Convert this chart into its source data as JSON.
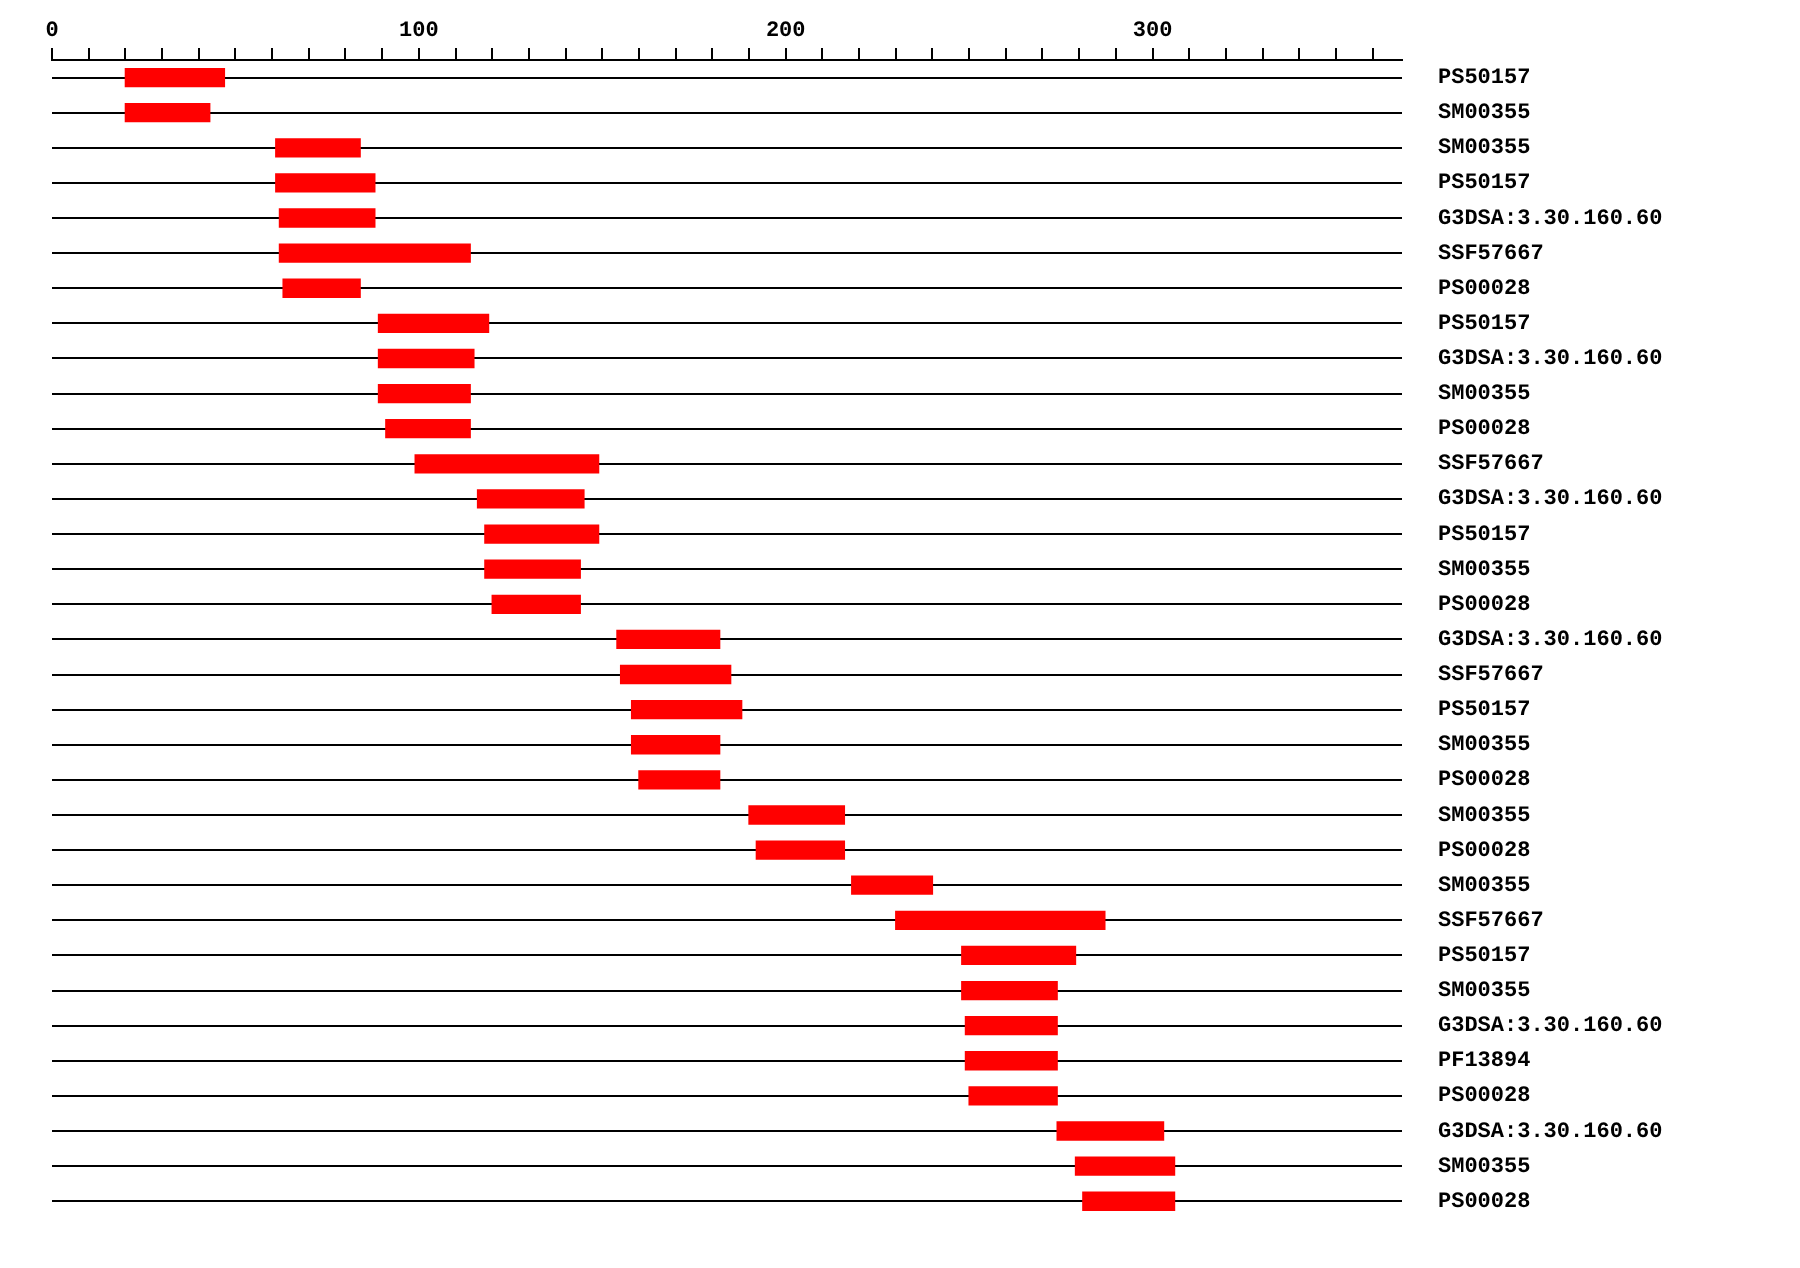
{
  "chart_data": {
    "type": "bar",
    "orientation": "horizontal",
    "color": "#ff0000",
    "grid": "y",
    "legend": false,
    "categories": [
      "PS50157",
      "SM00355",
      "SM00355",
      "PS50157",
      "G3DSA:3.30.160.60",
      "SSF57667",
      "PS00028",
      "PS50157",
      "G3DSA:3.30.160.60",
      "SM00355",
      "PS00028",
      "SSF57667",
      "G3DSA:3.30.160.60",
      "PS50157",
      "SM00355",
      "PS00028",
      "G3DSA:3.30.160.60",
      "SSF57667",
      "PS50157",
      "SM00355",
      "PS00028",
      "SM00355",
      "PS00028",
      "SM00355",
      "SSF57667",
      "PS50157",
      "SM00355",
      "G3DSA:3.30.160.60",
      "PF13894",
      "PS00028",
      "G3DSA:3.30.160.60",
      "SM00355",
      "PS00028"
    ],
    "base": [
      20,
      20,
      61,
      61,
      62,
      62,
      63,
      89,
      89,
      89,
      91,
      99,
      116,
      118,
      118,
      120,
      154,
      155,
      158,
      158,
      160,
      190,
      192,
      218,
      230,
      248,
      248,
      249,
      249,
      250,
      274,
      279,
      281
    ],
    "values": [
      27,
      23,
      23,
      27,
      26,
      52,
      21,
      30,
      26,
      25,
      23,
      50,
      29,
      31,
      26,
      24,
      28,
      30,
      30,
      24,
      22,
      26,
      24,
      22,
      57,
      31,
      26,
      25,
      25,
      24,
      29,
      27,
      25
    ],
    "xlim": [
      0,
      368
    ],
    "xticks": [
      0,
      {
        "value": 10,
        "label": null
      },
      {
        "value": 20,
        "label": null
      },
      {
        "value": 30,
        "label": null
      },
      {
        "value": 40,
        "label": null
      },
      {
        "value": 50,
        "label": null
      },
      {
        "value": 60,
        "label": null
      },
      {
        "value": 70,
        "label": null
      },
      {
        "value": 80,
        "label": null
      },
      {
        "value": 90,
        "label": null
      },
      100,
      {
        "value": 110,
        "label": null
      },
      {
        "value": 120,
        "label": null
      },
      {
        "value": 130,
        "label": null
      },
      {
        "value": 140,
        "label": null
      },
      {
        "value": 150,
        "label": null
      },
      {
        "value": 160,
        "label": null
      },
      {
        "value": 170,
        "label": null
      },
      {
        "value": 180,
        "label": null
      },
      {
        "value": 190,
        "label": null
      },
      200,
      {
        "value": 210,
        "label": null
      },
      {
        "value": 220,
        "label": null
      },
      {
        "value": 230,
        "label": null
      },
      {
        "value": 240,
        "label": null
      },
      {
        "value": 250,
        "label": null
      },
      {
        "value": 260,
        "label": null
      },
      {
        "value": 270,
        "label": null
      },
      {
        "value": 280,
        "label": null
      },
      {
        "value": 290,
        "label": null
      },
      300,
      {
        "value": 310,
        "label": null
      },
      {
        "value": 320,
        "label": null
      },
      {
        "value": 330,
        "label": null
      },
      {
        "value": 340,
        "label": null
      },
      {
        "value": 350,
        "label": null
      },
      {
        "value": 360,
        "label": null
      }
    ]
  }
}
